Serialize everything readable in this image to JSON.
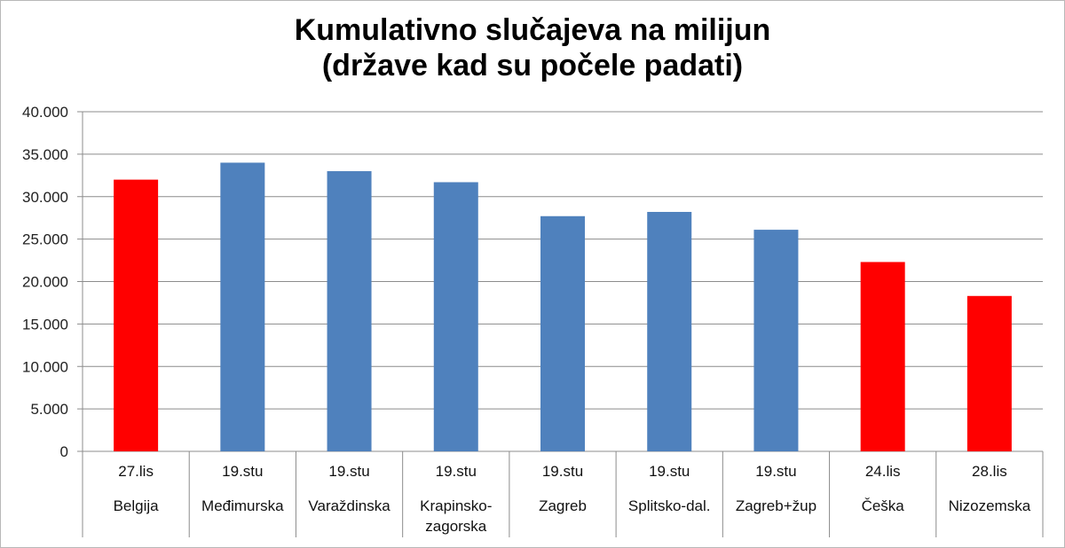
{
  "chart_data": {
    "type": "bar",
    "title_line1": "Kumulativno slučajeva na milijun",
    "title_line2": "(države kad su počele padati)",
    "categories": [
      {
        "date": "27.lis",
        "label": [
          "Belgija"
        ],
        "value": 32000,
        "color": "#ff0000"
      },
      {
        "date": "19.stu",
        "label": [
          "Međimurska"
        ],
        "value": 34000,
        "color": "#4f81bd"
      },
      {
        "date": "19.stu",
        "label": [
          "Varaždinska"
        ],
        "value": 33000,
        "color": "#4f81bd"
      },
      {
        "date": "19.stu",
        "label": [
          "Krapinsko-",
          "zagorska"
        ],
        "value": 31700,
        "color": "#4f81bd"
      },
      {
        "date": "19.stu",
        "label": [
          "Zagreb"
        ],
        "value": 27700,
        "color": "#4f81bd"
      },
      {
        "date": "19.stu",
        "label": [
          "Splitsko-dal."
        ],
        "value": 28200,
        "color": "#4f81bd"
      },
      {
        "date": "19.stu",
        "label": [
          "Zagreb+žup"
        ],
        "value": 26100,
        "color": "#4f81bd"
      },
      {
        "date": "24.lis",
        "label": [
          "Češka"
        ],
        "value": 22300,
        "color": "#ff0000"
      },
      {
        "date": "28.lis",
        "label": [
          "Nizozemska"
        ],
        "value": 18300,
        "color": "#ff0000"
      }
    ],
    "ylim": [
      0,
      40000
    ],
    "yticks": [
      "0",
      "5.000",
      "10.000",
      "15.000",
      "20.000",
      "25.000",
      "30.000",
      "35.000",
      "40.000"
    ],
    "grid": true,
    "colors": {
      "blue": "#4f81bd",
      "red": "#ff0000",
      "grid": "#8c8c8c"
    }
  }
}
